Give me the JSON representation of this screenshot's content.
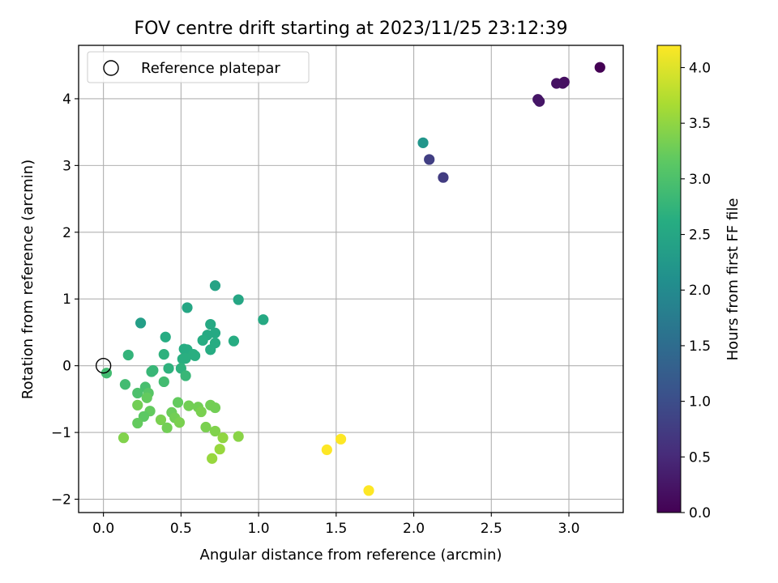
{
  "chart_data": {
    "type": "scatter",
    "title": "FOV centre drift starting at 2023/11/25 23:12:39",
    "xlabel": "Angular distance from reference (arcmin)",
    "ylabel": "Rotation from reference (arcmin)",
    "xlim": [
      -0.16,
      3.35
    ],
    "ylim": [
      -2.2,
      4.8
    ],
    "xticks": [
      0.0,
      0.5,
      1.0,
      1.5,
      2.0,
      2.5,
      3.0
    ],
    "xtick_labels": [
      "0.0",
      "0.5",
      "1.0",
      "1.5",
      "2.0",
      "2.5",
      "3.0"
    ],
    "yticks": [
      -2,
      -1,
      0,
      1,
      2,
      3,
      4
    ],
    "ytick_labels": [
      "−2",
      "−1",
      "0",
      "1",
      "2",
      "3",
      "4"
    ],
    "grid": true,
    "legend": {
      "location": "upper-left",
      "entries": [
        "Reference platepar"
      ]
    },
    "reference_point": {
      "x": 0.0,
      "y": 0.0
    },
    "colorbar": {
      "label": "Hours from first FF file",
      "colormap": "viridis",
      "range": [
        0.0,
        4.2
      ],
      "ticks": [
        0.0,
        0.5,
        1.0,
        1.5,
        2.0,
        2.5,
        3.0,
        3.5,
        4.0
      ],
      "tick_labels": [
        "0.0",
        "0.5",
        "1.0",
        "1.5",
        "2.0",
        "2.5",
        "3.0",
        "3.5",
        "4.0"
      ]
    },
    "points": [
      {
        "x": 3.2,
        "y": 4.47,
        "c": 0.0
      },
      {
        "x": 2.97,
        "y": 4.25,
        "c": 0.17
      },
      {
        "x": 2.96,
        "y": 4.23,
        "c": 0.17
      },
      {
        "x": 2.92,
        "y": 4.23,
        "c": 0.2
      },
      {
        "x": 2.8,
        "y": 3.99,
        "c": 0.25
      },
      {
        "x": 2.81,
        "y": 3.96,
        "c": 0.25
      },
      {
        "x": 2.19,
        "y": 2.82,
        "c": 0.75
      },
      {
        "x": 2.1,
        "y": 3.09,
        "c": 0.8
      },
      {
        "x": 2.06,
        "y": 3.34,
        "c": 2.2
      },
      {
        "x": 0.72,
        "y": 1.2,
        "c": 2.45
      },
      {
        "x": 0.87,
        "y": 0.99,
        "c": 2.5
      },
      {
        "x": 0.54,
        "y": 0.87,
        "c": 2.5
      },
      {
        "x": 1.03,
        "y": 0.69,
        "c": 2.55
      },
      {
        "x": 0.24,
        "y": 0.64,
        "c": 2.35
      },
      {
        "x": 0.69,
        "y": 0.62,
        "c": 2.55
      },
      {
        "x": 0.72,
        "y": 0.49,
        "c": 2.55
      },
      {
        "x": 0.67,
        "y": 0.46,
        "c": 2.55
      },
      {
        "x": 0.4,
        "y": 0.43,
        "c": 2.6
      },
      {
        "x": 0.64,
        "y": 0.38,
        "c": 2.6
      },
      {
        "x": 0.84,
        "y": 0.37,
        "c": 2.6
      },
      {
        "x": 0.72,
        "y": 0.34,
        "c": 2.6
      },
      {
        "x": 0.52,
        "y": 0.25,
        "c": 2.6
      },
      {
        "x": 0.54,
        "y": 0.24,
        "c": 2.6
      },
      {
        "x": 0.69,
        "y": 0.24,
        "c": 2.6
      },
      {
        "x": 0.58,
        "y": 0.17,
        "c": 2.65
      },
      {
        "x": 0.59,
        "y": 0.15,
        "c": 2.65
      },
      {
        "x": 0.39,
        "y": 0.17,
        "c": 2.7
      },
      {
        "x": 0.16,
        "y": 0.16,
        "c": 2.75
      },
      {
        "x": 0.53,
        "y": 0.11,
        "c": 2.65
      },
      {
        "x": 0.51,
        "y": 0.1,
        "c": 2.65
      },
      {
        "x": 0.5,
        "y": -0.04,
        "c": 2.7
      },
      {
        "x": 0.42,
        "y": -0.04,
        "c": 2.7
      },
      {
        "x": 0.32,
        "y": -0.07,
        "c": 2.8
      },
      {
        "x": 0.31,
        "y": -0.09,
        "c": 2.8
      },
      {
        "x": 0.02,
        "y": -0.11,
        "c": 2.9
      },
      {
        "x": 0.53,
        "y": -0.15,
        "c": 2.8
      },
      {
        "x": 0.39,
        "y": -0.24,
        "c": 2.9
      },
      {
        "x": 0.14,
        "y": -0.28,
        "c": 2.9
      },
      {
        "x": 0.27,
        "y": -0.32,
        "c": 2.95
      },
      {
        "x": 0.22,
        "y": -0.41,
        "c": 3.0
      },
      {
        "x": 0.29,
        "y": -0.41,
        "c": 3.1
      },
      {
        "x": 0.28,
        "y": -0.48,
        "c": 3.2
      },
      {
        "x": 0.48,
        "y": -0.55,
        "c": 3.2
      },
      {
        "x": 0.22,
        "y": -0.59,
        "c": 3.3
      },
      {
        "x": 0.55,
        "y": -0.6,
        "c": 3.3
      },
      {
        "x": 0.61,
        "y": -0.62,
        "c": 3.3
      },
      {
        "x": 0.69,
        "y": -0.59,
        "c": 3.3
      },
      {
        "x": 0.72,
        "y": -0.63,
        "c": 3.3
      },
      {
        "x": 0.63,
        "y": -0.69,
        "c": 3.35
      },
      {
        "x": 0.3,
        "y": -0.68,
        "c": 3.2
      },
      {
        "x": 0.44,
        "y": -0.7,
        "c": 3.25
      },
      {
        "x": 0.26,
        "y": -0.76,
        "c": 3.15
      },
      {
        "x": 0.46,
        "y": -0.78,
        "c": 3.3
      },
      {
        "x": 0.37,
        "y": -0.81,
        "c": 3.35
      },
      {
        "x": 0.49,
        "y": -0.85,
        "c": 3.35
      },
      {
        "x": 0.22,
        "y": -0.86,
        "c": 3.2
      },
      {
        "x": 0.41,
        "y": -0.93,
        "c": 3.3
      },
      {
        "x": 0.66,
        "y": -0.92,
        "c": 3.35
      },
      {
        "x": 0.72,
        "y": -0.98,
        "c": 3.4
      },
      {
        "x": 0.87,
        "y": -1.06,
        "c": 3.45
      },
      {
        "x": 0.77,
        "y": -1.08,
        "c": 3.5
      },
      {
        "x": 0.13,
        "y": -1.08,
        "c": 3.4
      },
      {
        "x": 0.75,
        "y": -1.25,
        "c": 3.55
      },
      {
        "x": 0.7,
        "y": -1.39,
        "c": 3.55
      },
      {
        "x": 1.53,
        "y": -1.1,
        "c": 4.2
      },
      {
        "x": 1.44,
        "y": -1.26,
        "c": 4.2
      },
      {
        "x": 1.71,
        "y": -1.87,
        "c": 4.2
      }
    ]
  }
}
